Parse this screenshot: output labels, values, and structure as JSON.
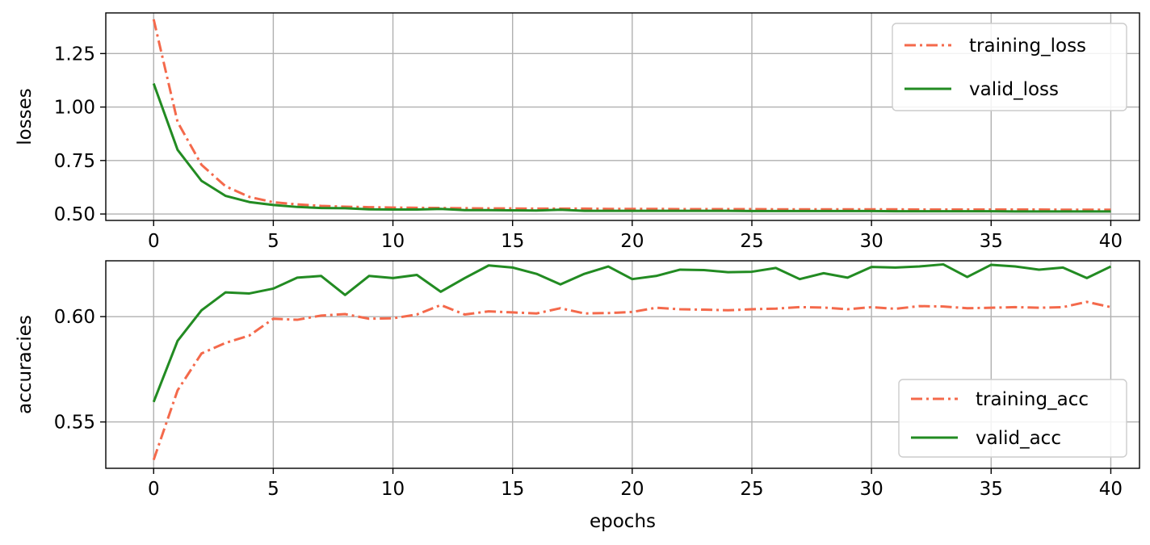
{
  "chart_data": [
    {
      "type": "line",
      "title": "",
      "xlabel": "",
      "ylabel": "losses",
      "x_ticks": [
        "0",
        "5",
        "10",
        "15",
        "20",
        "25",
        "30",
        "35",
        "40"
      ],
      "y_ticks": [
        "0.50",
        "0.75",
        "1.00",
        "1.25"
      ],
      "xlim": [
        -2,
        41.2
      ],
      "ylim": [
        0.47,
        1.44
      ],
      "grid": true,
      "legend_position": "top-right",
      "x": [
        0,
        1,
        2,
        3,
        4,
        5,
        6,
        7,
        8,
        9,
        10,
        11,
        12,
        13,
        14,
        15,
        16,
        17,
        18,
        19,
        20,
        21,
        22,
        23,
        24,
        25,
        26,
        27,
        28,
        29,
        30,
        31,
        32,
        33,
        34,
        35,
        36,
        37,
        38,
        39,
        40
      ],
      "series": [
        {
          "name": "training_loss",
          "color": "#f4694b",
          "style": "dashdot",
          "values": [
            1.41,
            0.93,
            0.73,
            0.63,
            0.58,
            0.555,
            0.545,
            0.538,
            0.534,
            0.532,
            0.53,
            0.529,
            0.528,
            0.527,
            0.526,
            0.526,
            0.525,
            0.525,
            0.525,
            0.524,
            0.524,
            0.524,
            0.523,
            0.523,
            0.523,
            0.523,
            0.522,
            0.522,
            0.522,
            0.522,
            0.522,
            0.522,
            0.521,
            0.521,
            0.521,
            0.521,
            0.521,
            0.521,
            0.52,
            0.52,
            0.52
          ]
        },
        {
          "name": "valid_loss",
          "color": "#228b22",
          "style": "solid",
          "values": [
            1.11,
            0.8,
            0.655,
            0.585,
            0.556,
            0.542,
            0.533,
            0.528,
            0.527,
            0.522,
            0.521,
            0.521,
            0.524,
            0.518,
            0.518,
            0.517,
            0.516,
            0.52,
            0.515,
            0.515,
            0.515,
            0.515,
            0.515,
            0.515,
            0.515,
            0.514,
            0.514,
            0.514,
            0.514,
            0.514,
            0.514,
            0.513,
            0.513,
            0.513,
            0.513,
            0.513,
            0.512,
            0.512,
            0.512,
            0.512,
            0.512
          ]
        }
      ]
    },
    {
      "type": "line",
      "title": "",
      "xlabel": "epochs",
      "ylabel": "accuracies",
      "x_ticks": [
        "0",
        "5",
        "10",
        "15",
        "20",
        "25",
        "30",
        "35",
        "40"
      ],
      "y_ticks": [
        "0.55",
        "0.60"
      ],
      "xlim": [
        -2,
        41.2
      ],
      "ylim": [
        0.528,
        0.6265
      ],
      "grid": true,
      "legend_position": "lower-right",
      "x": [
        0,
        1,
        2,
        3,
        4,
        5,
        6,
        7,
        8,
        9,
        10,
        11,
        12,
        13,
        14,
        15,
        16,
        17,
        18,
        19,
        20,
        21,
        22,
        23,
        24,
        25,
        26,
        27,
        28,
        29,
        30,
        31,
        32,
        33,
        34,
        35,
        36,
        37,
        38,
        39,
        40
      ],
      "series": [
        {
          "name": "training_acc",
          "color": "#f4694b",
          "style": "dashdot",
          "values": [
            0.532,
            0.565,
            0.5825,
            0.5875,
            0.591,
            0.599,
            0.5985,
            0.6005,
            0.6012,
            0.599,
            0.5992,
            0.601,
            0.6055,
            0.601,
            0.6025,
            0.602,
            0.6015,
            0.604,
            0.6015,
            0.6017,
            0.6022,
            0.6042,
            0.6035,
            0.6033,
            0.603,
            0.6035,
            0.6038,
            0.6045,
            0.6043,
            0.6035,
            0.6045,
            0.6037,
            0.605,
            0.6048,
            0.604,
            0.6042,
            0.6045,
            0.6042,
            0.6045,
            0.607,
            0.6045
          ]
        },
        {
          "name": "valid_acc",
          "color": "#228b22",
          "style": "solid",
          "values": [
            0.5595,
            0.5885,
            0.603,
            0.6115,
            0.611,
            0.6133,
            0.6185,
            0.6193,
            0.6103,
            0.6193,
            0.6183,
            0.6198,
            0.6118,
            0.6183,
            0.6243,
            0.6233,
            0.6203,
            0.6153,
            0.6203,
            0.6238,
            0.6178,
            0.6193,
            0.6223,
            0.6221,
            0.6211,
            0.6213,
            0.6231,
            0.6178,
            0.6206,
            0.6185,
            0.6236,
            0.6233,
            0.6238,
            0.6248,
            0.6188,
            0.6246,
            0.6238,
            0.6223,
            0.6233,
            0.6183,
            0.6238
          ]
        }
      ]
    }
  ]
}
